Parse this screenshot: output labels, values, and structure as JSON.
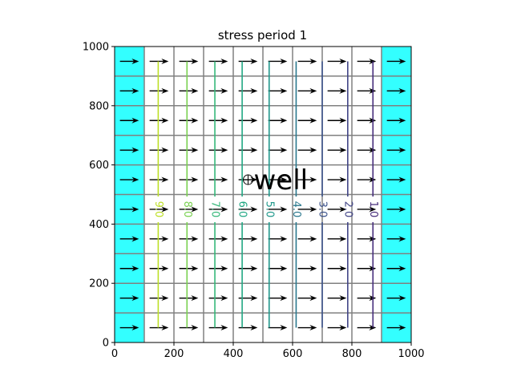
{
  "chart_data": {
    "type": "contour",
    "title": "stress period 1",
    "xlim": [
      0,
      1000
    ],
    "ylim": [
      0,
      1000
    ],
    "xticks": [
      0,
      200,
      400,
      600,
      800,
      1000
    ],
    "yticks": [
      0,
      200,
      400,
      600,
      800,
      1000
    ],
    "xtick_labels": [
      "0",
      "200",
      "400",
      "600",
      "800",
      "1000"
    ],
    "ytick_labels": [
      "0",
      "200",
      "400",
      "600",
      "800",
      "1000"
    ],
    "grid": {
      "ncol": 10,
      "nrow": 10,
      "cell_size": 100,
      "line_color": "#808080"
    },
    "constant_head_columns": [
      0,
      9
    ],
    "constant_head_color": "#33ffff",
    "contours": [
      {
        "level": 90,
        "label": "9.0",
        "x": 147,
        "color": "#bddf26"
      },
      {
        "level": 80,
        "label": "8.0",
        "x": 244,
        "color": "#7ad151"
      },
      {
        "level": 70,
        "label": "7.0",
        "x": 338,
        "color": "#35b779"
      },
      {
        "level": 60,
        "label": "6.0",
        "x": 430,
        "color": "#22a884"
      },
      {
        "level": 50,
        "label": "5.0",
        "x": 521,
        "color": "#1f988b"
      },
      {
        "level": 40,
        "label": "4.0",
        "x": 612,
        "color": "#2a788e"
      },
      {
        "level": 30,
        "label": "3.0",
        "x": 700,
        "color": "#3b528b"
      },
      {
        "level": 20,
        "label": "2.0",
        "x": 786,
        "color": "#414487"
      },
      {
        "level": 10,
        "label": "1.0",
        "x": 871,
        "color": "#472d7b"
      }
    ],
    "contour_y_range": [
      50,
      950
    ],
    "contour_label_y": 450,
    "flow_direction": "east",
    "vector_color": "#000000",
    "well": {
      "label": "well",
      "x": 450,
      "y": 550,
      "marker": "circled-plus"
    }
  }
}
